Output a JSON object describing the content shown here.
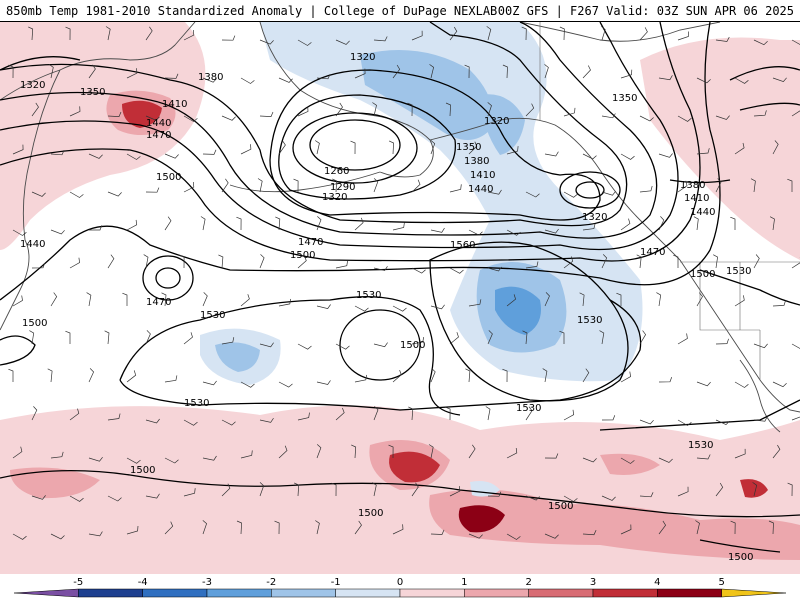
{
  "title_left": "850mb Temp 1981-2010 Standardized Anomaly | College of DuPage NEXLAB",
  "title_right": "00Z GFS | F267 Valid: 03Z SUN APR 06 2025",
  "colors": {
    "pos1": "#f6d5d8",
    "pos2": "#eca7ad",
    "pos3": "#d86c74",
    "pos4": "#c12e37",
    "pos5": "#8c0015",
    "neg1": "#d6e4f3",
    "neg2": "#9fc4e8",
    "neg3": "#5f9fdb",
    "neg4": "#2f6fc0",
    "neg5": "#1d3f8f",
    "contour": "#000000",
    "coast": "#4a4a4a"
  },
  "contour_labels": [
    {
      "id": "c1320a",
      "text": "1320"
    },
    {
      "id": "c1350a",
      "text": "1350"
    },
    {
      "id": "c1380a",
      "text": "1380"
    },
    {
      "id": "c1410a",
      "text": "1410"
    },
    {
      "id": "c1440a",
      "text": "1440"
    },
    {
      "id": "c1470a",
      "text": "1470"
    },
    {
      "id": "c1500a",
      "text": "1500"
    },
    {
      "id": "c1440b",
      "text": "1440"
    },
    {
      "id": "c1500b",
      "text": "1500"
    },
    {
      "id": "c1470b",
      "text": "1470"
    },
    {
      "id": "c1530a",
      "text": "1530"
    },
    {
      "id": "c1530b",
      "text": "1530"
    },
    {
      "id": "c1500c",
      "text": "1500"
    },
    {
      "id": "c1530c",
      "text": "1530"
    },
    {
      "id": "c1560a",
      "text": "1560"
    },
    {
      "id": "c1530d",
      "text": "1530"
    },
    {
      "id": "c1530e",
      "text": "1530"
    },
    {
      "id": "c1500d",
      "text": "1500"
    },
    {
      "id": "c1500e",
      "text": "1500"
    },
    {
      "id": "c1500f",
      "text": "1500"
    },
    {
      "id": "c1260",
      "text": "1260"
    },
    {
      "id": "c1290",
      "text": "1290"
    },
    {
      "id": "c1320b",
      "text": "1320"
    },
    {
      "id": "c1320c",
      "text": "1320"
    },
    {
      "id": "c1320d",
      "text": "1320"
    },
    {
      "id": "c1350b",
      "text": "1350"
    },
    {
      "id": "c1380b",
      "text": "1380"
    },
    {
      "id": "c1410b",
      "text": "1410"
    },
    {
      "id": "c1440c",
      "text": "1440"
    },
    {
      "id": "c1470c",
      "text": "1470"
    },
    {
      "id": "c1500g",
      "text": "1500"
    },
    {
      "id": "c1350c",
      "text": "1350"
    },
    {
      "id": "c1320e",
      "text": "1320"
    },
    {
      "id": "c1380c",
      "text": "1380"
    },
    {
      "id": "c1410c",
      "text": "1410"
    },
    {
      "id": "c1440d",
      "text": "1440"
    },
    {
      "id": "c1470d",
      "text": "1470"
    },
    {
      "id": "c1500h",
      "text": "1500"
    },
    {
      "id": "c1530f",
      "text": "1530"
    },
    {
      "id": "c1530g",
      "text": "1530"
    },
    {
      "id": "c1500i",
      "text": "1500"
    }
  ],
  "legend": {
    "ticks": [
      "-5",
      "-4",
      "-3",
      "-2",
      "-1",
      "0",
      "1",
      "2",
      "3",
      "4",
      "5"
    ],
    "colors": [
      "#7a4fa3",
      "#1d3f8f",
      "#2f6fc0",
      "#5f9fdb",
      "#9fc4e8",
      "#d6e4f3",
      "#f6d5d8",
      "#eca7ad",
      "#d86c74",
      "#c12e37",
      "#8c0015",
      "#f0c419"
    ]
  }
}
